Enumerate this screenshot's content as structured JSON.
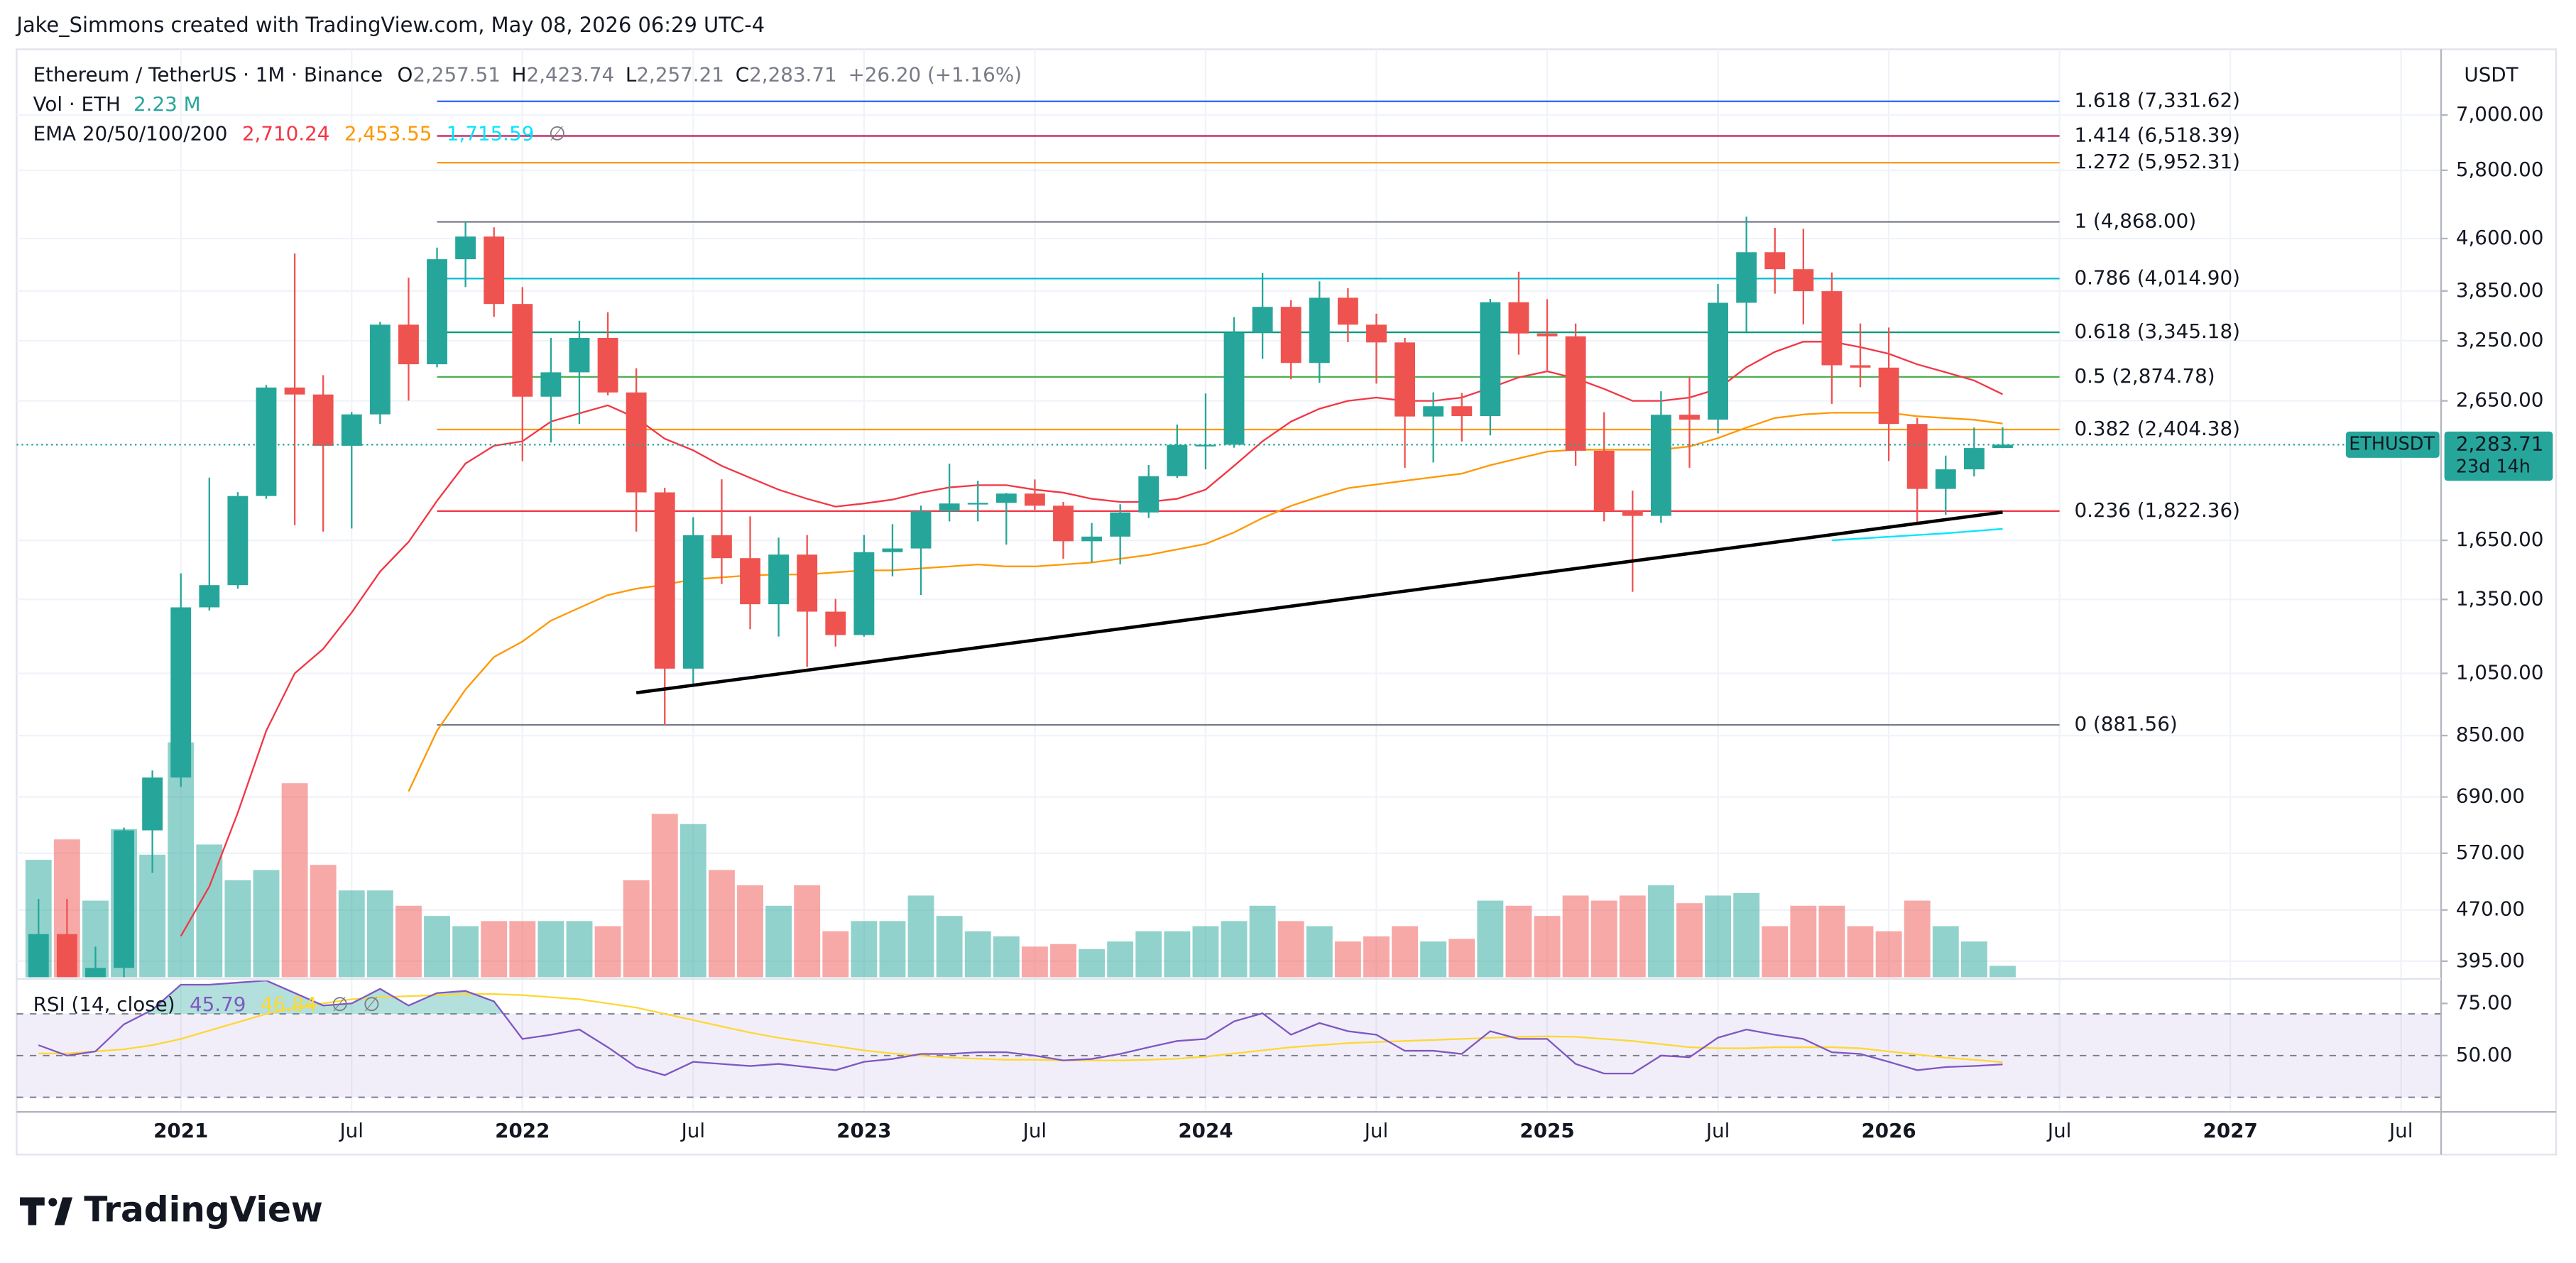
{
  "header": "Jake_Simmons created with TradingView.com, May 08, 2026 06:29 UTC-4",
  "footer_logo": "TradingView",
  "chart_data": {
    "type": "candlestick",
    "title": "Ethereum / TetherUS · 1M · Binance",
    "ohlc_legend": [
      {
        "key": "O",
        "label": "2,257.51"
      },
      {
        "key": "H",
        "label": "2,423.74"
      },
      {
        "key": "L",
        "label": "2,257.21"
      },
      {
        "key": "C",
        "label": "2,283.71"
      }
    ],
    "change_label": "+26.20 (+1.16%)",
    "up_color": "#26a69a",
    "down_color": "#ef5350",
    "x": [
      "2020-08",
      "2020-09",
      "2020-10",
      "2020-11",
      "2020-12",
      "2021-01",
      "2021-02",
      "2021-03",
      "2021-04",
      "2021-05",
      "2021-06",
      "2021-07",
      "2021-08",
      "2021-09",
      "2021-10",
      "2021-11",
      "2021-12",
      "2022-01",
      "2022-02",
      "2022-03",
      "2022-04",
      "2022-05",
      "2022-06",
      "2022-07",
      "2022-08",
      "2022-09",
      "2022-10",
      "2022-11",
      "2022-12",
      "2023-01",
      "2023-02",
      "2023-03",
      "2023-04",
      "2023-05",
      "2023-06",
      "2023-07",
      "2023-08",
      "2023-09",
      "2023-10",
      "2023-11",
      "2023-12",
      "2024-01",
      "2024-02",
      "2024-03",
      "2024-04",
      "2024-05",
      "2024-06",
      "2024-07",
      "2024-08",
      "2024-09",
      "2024-10",
      "2024-11",
      "2024-12",
      "2025-01",
      "2025-02",
      "2025-03",
      "2025-04",
      "2025-05",
      "2025-06",
      "2025-07",
      "2025-08",
      "2025-09",
      "2025-10",
      "2025-11",
      "2025-12",
      "2026-01",
      "2026-02",
      "2026-03",
      "2026-04",
      "2026-05"
    ],
    "open": [
      345,
      433,
      360,
      386,
      616,
      737,
      1314,
      1417,
      1918,
      2773,
      2708,
      2275,
      2531,
      3433,
      3001,
      4288,
      4631,
      3683,
      2688,
      2920,
      3282,
      2727,
      1942,
      1067,
      1679,
      1553,
      1328,
      1572,
      1295,
      1196,
      1585,
      1605,
      1821,
      1870,
      1874,
      1934,
      1856,
      1645,
      1671,
      1814,
      2052,
      2282,
      2283,
      3340,
      3647,
      3014,
      3762,
      3433,
      3232,
      2513,
      2602,
      2517,
      3705,
      3332,
      3300,
      2237,
      1822,
      1793,
      2528,
      2486,
      3698,
      4391,
      4145,
      3847,
      2991,
      2967,
      2450,
      1965,
      2100,
      2257.51
    ],
    "high": [
      488,
      488,
      415,
      622,
      755,
      1475,
      2042,
      1943,
      2797,
      4372,
      2891,
      2551,
      3466,
      4027,
      4460,
      4868,
      4778,
      3900,
      3282,
      3479,
      3580,
      2960,
      1972,
      1785,
      2030,
      1790,
      1665,
      1680,
      1352,
      1680,
      1743,
      1857,
      2141,
      2020,
      1938,
      2029,
      1880,
      1750,
      1865,
      2131,
      2445,
      2717,
      3522,
      4093,
      3730,
      3977,
      3887,
      3563,
      3282,
      2728,
      2722,
      3747,
      4109,
      3744,
      3446,
      2550,
      1954,
      2738,
      2880,
      3941,
      4956,
      4770,
      4756,
      4100,
      3447,
      3400,
      2500,
      2200,
      2420,
      2423.74
    ],
    "low": [
      334,
      308,
      340,
      370,
      533,
      714,
      1300,
      1400,
      1900,
      1737,
      1700,
      1718,
      2451,
      2652,
      2970,
      3900,
      3525,
      2159,
      2300,
      2450,
      2700,
      1700,
      881.56,
      1006,
      1422,
      1220,
      1190,
      1073,
      1150,
      1190,
      1460,
      1370,
      1760,
      1760,
      1626,
      1830,
      1550,
      1531,
      1521,
      1780,
      2040,
      2100,
      2260,
      3056,
      2852,
      2817,
      3235,
      2810,
      2111,
      2150,
      2308,
      2357,
      3100,
      2920,
      2125,
      1760,
      1385,
      1750,
      2111,
      2373,
      3355,
      3815,
      3436,
      2623,
      2776,
      2160,
      1740,
      1800,
      2050,
      2257.21
    ],
    "close": [
      433,
      360,
      386,
      616,
      737,
      1314,
      1417,
      1918,
      2773,
      2708,
      2275,
      2531,
      3433,
      3001,
      4288,
      4631,
      3683,
      2688,
      2920,
      3282,
      2727,
      1942,
      1067,
      1679,
      1553,
      1328,
      1572,
      1295,
      1196,
      1585,
      1605,
      1821,
      1870,
      1874,
      1934,
      1856,
      1645,
      1671,
      1814,
      2052,
      2282,
      2283,
      3340,
      3647,
      3014,
      3762,
      3433,
      3232,
      2513,
      2602,
      2517,
      3705,
      3332,
      3300,
      2237,
      1822,
      1793,
      2528,
      2486,
      3698,
      4391,
      4145,
      3847,
      2991,
      2967,
      2450,
      1965,
      2100,
      2257.51,
      2283.71
    ],
    "xlim": [
      "2020-07",
      "2027-08"
    ],
    "xticks": [
      {
        "value": "2021-01",
        "label": "2021"
      },
      {
        "value": "2021-07",
        "label": "Jul"
      },
      {
        "value": "2022-01",
        "label": "2022"
      },
      {
        "value": "2022-07",
        "label": "Jul"
      },
      {
        "value": "2023-01",
        "label": "2023"
      },
      {
        "value": "2023-07",
        "label": "Jul"
      },
      {
        "value": "2024-01",
        "label": "2024"
      },
      {
        "value": "2024-07",
        "label": "Jul"
      },
      {
        "value": "2025-01",
        "label": "2025"
      },
      {
        "value": "2025-07",
        "label": "Jul"
      },
      {
        "value": "2026-01",
        "label": "2026"
      },
      {
        "value": "2026-07",
        "label": "Jul"
      },
      {
        "value": "2027-01",
        "label": "2027"
      },
      {
        "value": "2027-07",
        "label": "Jul"
      }
    ],
    "ylim": [
      374,
      8750
    ],
    "log_scale": true,
    "grid": true,
    "y_axis_label": "USDT",
    "yticks": [
      {
        "value": 395,
        "label": "395.00"
      },
      {
        "value": 470,
        "label": "470.00"
      },
      {
        "value": 570,
        "label": "570.00"
      },
      {
        "value": 690,
        "label": "690.00"
      },
      {
        "value": 850,
        "label": "850.00"
      },
      {
        "value": 1050,
        "label": "1,050.00"
      },
      {
        "value": 1350,
        "label": "1,350.00"
      },
      {
        "value": 1650,
        "label": "1,650.00"
      },
      {
        "value": 2650,
        "label": "2,650.00"
      },
      {
        "value": 3250,
        "label": "3,250.00"
      },
      {
        "value": 3850,
        "label": "3,850.00"
      },
      {
        "value": 4600,
        "label": "4,600.00"
      },
      {
        "value": 5800,
        "label": "5,800.00"
      },
      {
        "value": 7000,
        "label": "7,000.00"
      }
    ],
    "volume": {
      "name": "Vol · ETH",
      "last_label": "2.23 M",
      "values": [
        23,
        27,
        15,
        29,
        24,
        46,
        26,
        19,
        21,
        38,
        22,
        17,
        17,
        14,
        12,
        10,
        11,
        11,
        11,
        11,
        10,
        19,
        32,
        30,
        21,
        18,
        14,
        18,
        9,
        11,
        11,
        16,
        12,
        9,
        8,
        6,
        6.5,
        5.5,
        7,
        9,
        9,
        10,
        11,
        14,
        11,
        10,
        7,
        8,
        10,
        7,
        7.5,
        15,
        14,
        12,
        16,
        15,
        16,
        18,
        14.5,
        16,
        16.5,
        10,
        14,
        14,
        10,
        9,
        15,
        10,
        7,
        2.23
      ]
    },
    "ema": {
      "label": "EMA 20/50/100/200",
      "missing_label": "∅",
      "series": [
        {
          "color": "#f23645",
          "last_label": "2,710.24",
          "values": [
            null,
            null,
            null,
            null,
            null,
            430,
            509,
            654,
            864,
            1050,
            1141,
            1291,
            1484,
            1641,
            1887,
            2142,
            2275,
            2310,
            2470,
            2540,
            2610,
            2500,
            2330,
            2240,
            2125,
            2040,
            1960,
            1900,
            1850,
            1870,
            1895,
            1940,
            1975,
            1990,
            1990,
            1960,
            1940,
            1900,
            1880,
            1880,
            1900,
            1960,
            2125,
            2310,
            2470,
            2580,
            2650,
            2680,
            2650,
            2650,
            2680,
            2770,
            2870,
            2930,
            2860,
            2760,
            2650,
            2650,
            2680,
            2760,
            2970,
            3130,
            3240,
            3240,
            3180,
            3110,
            3000,
            2920,
            2840,
            2710.24
          ]
        },
        {
          "color": "#ff9800",
          "last_label": "2,453.55",
          "values": [
            null,
            null,
            null,
            null,
            null,
            null,
            null,
            null,
            null,
            null,
            null,
            null,
            null,
            703,
            864,
            994,
            1110,
            1170,
            1256,
            1312,
            1370,
            1400,
            1419,
            1445,
            1455,
            1465,
            1469,
            1469,
            1480,
            1490,
            1490,
            1500,
            1510,
            1520,
            1510,
            1510,
            1520,
            1530,
            1550,
            1570,
            1600,
            1630,
            1695,
            1780,
            1855,
            1915,
            1970,
            1995,
            2020,
            2045,
            2070,
            2130,
            2180,
            2230,
            2245,
            2245,
            2245,
            2245,
            2270,
            2335,
            2420,
            2500,
            2530,
            2545,
            2545,
            2545,
            2515,
            2500,
            2485,
            2453.55
          ]
        },
        {
          "color": "#00e5ff",
          "last_label": "1,715.59",
          "values": [
            null,
            null,
            null,
            null,
            null,
            null,
            null,
            null,
            null,
            null,
            null,
            null,
            null,
            null,
            null,
            null,
            null,
            null,
            null,
            null,
            null,
            null,
            null,
            null,
            null,
            null,
            null,
            null,
            null,
            null,
            null,
            null,
            null,
            null,
            null,
            null,
            null,
            null,
            null,
            null,
            null,
            null,
            null,
            null,
            null,
            null,
            null,
            null,
            null,
            null,
            null,
            null,
            null,
            null,
            null,
            null,
            null,
            null,
            null,
            null,
            null,
            null,
            null,
            1650,
            1660,
            1670,
            1680,
            1690,
            1703,
            1715.59
          ]
        }
      ]
    },
    "fibonacci": {
      "start": "2021-10",
      "end": "2026-07",
      "levels": [
        {
          "label": "1.618 (7,331.62)",
          "price": 7331.62,
          "color": "#2962ff"
        },
        {
          "label": "1.414 (6,518.39)",
          "price": 6518.39,
          "color": "#c2185b"
        },
        {
          "label": "1.272 (5,952.31)",
          "price": 5952.31,
          "color": "#ff9800"
        },
        {
          "label": "1 (4,868.00)",
          "price": 4868.0,
          "color": "#787b86"
        },
        {
          "label": "0.786 (4,014.90)",
          "price": 4014.9,
          "color": "#00bcd4"
        },
        {
          "label": "0.618 (3,345.18)",
          "price": 3345.18,
          "color": "#089981"
        },
        {
          "label": "0.5 (2,874.78)",
          "price": 2874.78,
          "color": "#4caf50"
        },
        {
          "label": "0.382 (2,404.38)",
          "price": 2404.38,
          "color": "#ff9800"
        },
        {
          "label": "0.236 (1,822.36)",
          "price": 1822.36,
          "color": "#f23645"
        },
        {
          "label": "0 (881.56)",
          "price": 881.56,
          "color": "#787b86"
        }
      ]
    },
    "trendline": {
      "color": "#000000",
      "points": [
        {
          "x": "2022-05",
          "y": 983
        },
        {
          "x": "2026-05",
          "y": 1816
        }
      ]
    },
    "price_tag": {
      "symbol": "ETHUSDT",
      "price_label": "2,283.71",
      "countdown": "23d 14h"
    },
    "rsi": {
      "label": "RSI (14, close)",
      "missing_labels": [
        "∅",
        "∅"
      ],
      "ylim": [
        23,
        86
      ],
      "yticks": [
        {
          "value": 75,
          "label": "75.00"
        },
        {
          "value": 50,
          "label": "50.00"
        }
      ],
      "bands": [
        70,
        50,
        30
      ],
      "band_color": "#7e57c2",
      "series": [
        {
          "color": "#7e57c2",
          "last_label": "45.79",
          "values": [
            55,
            50,
            52,
            65,
            72,
            84,
            84,
            85,
            86,
            80,
            74,
            75,
            82,
            74,
            80,
            81,
            76,
            58,
            60,
            62.5,
            54,
            44.5,
            40.6,
            47,
            46,
            45,
            46,
            44.5,
            43,
            47,
            48.4,
            50.8,
            50.8,
            51.6,
            51.6,
            50,
            47.7,
            48.4,
            50.8,
            54,
            57,
            58,
            66.4,
            70.3,
            60,
            65.6,
            61.7,
            60,
            52.3,
            52.3,
            50.8,
            61.7,
            58,
            58,
            46,
            41.4,
            41.4,
            50,
            49.2,
            58.6,
            62.5,
            60,
            58,
            51.6,
            50.8,
            47,
            43,
            44.5,
            45,
            45.79
          ]
        },
        {
          "color": "#fdd835",
          "last_label": "46.84",
          "values": [
            51,
            51,
            52,
            53,
            55,
            58,
            62,
            66,
            70,
            73,
            75,
            77,
            78,
            78.5,
            79,
            79.5,
            79.5,
            79,
            78,
            77,
            75,
            73,
            70,
            67,
            64,
            61,
            58.5,
            56.5,
            54.5,
            52.5,
            51,
            50,
            49,
            48.5,
            48,
            48,
            47.7,
            47.7,
            47.7,
            48,
            48.5,
            49.5,
            51,
            52.5,
            54,
            55,
            56,
            56.5,
            57,
            57.5,
            58,
            58.5,
            59,
            59.2,
            59,
            58,
            57,
            55.5,
            54,
            53.5,
            53.5,
            54,
            54,
            54,
            53.5,
            52,
            50.5,
            49,
            48,
            46.84
          ]
        }
      ]
    }
  }
}
